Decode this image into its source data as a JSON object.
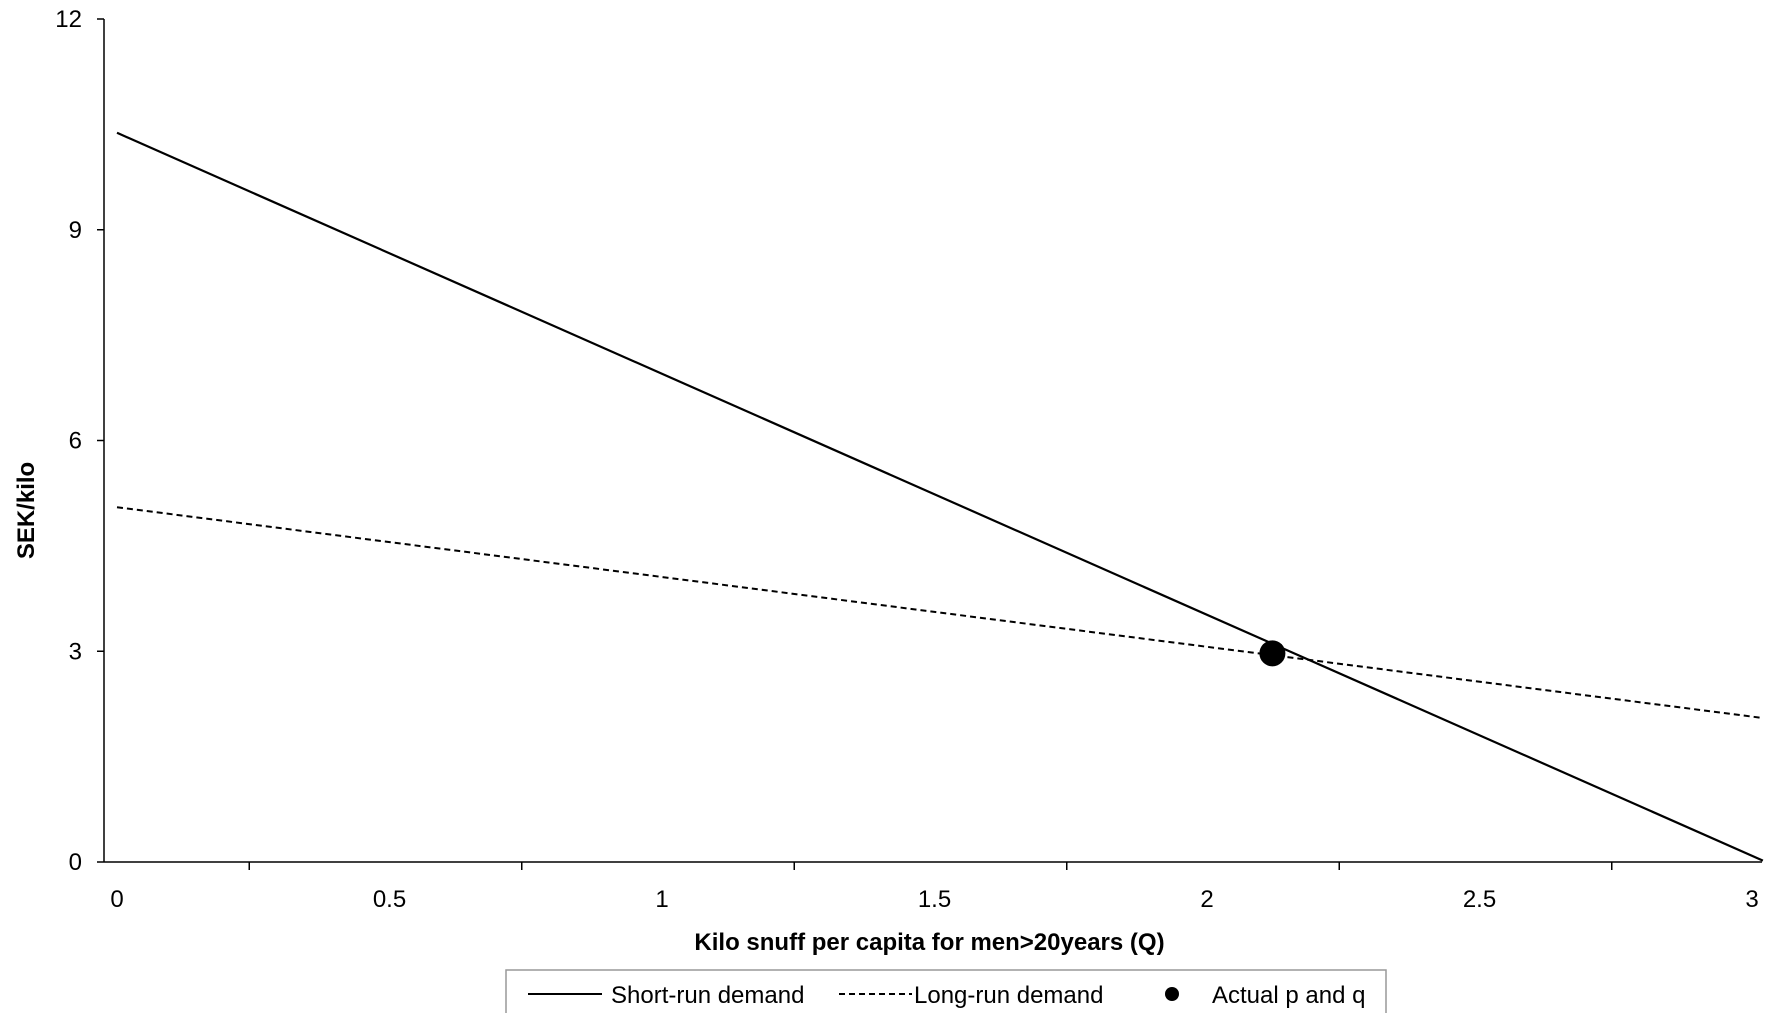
{
  "chart_data": {
    "type": "line",
    "title": "",
    "xlabel": "Kilo snuff per capita for men>20years (Q)",
    "ylabel": "SEK/kilo",
    "xlim": [
      0,
      3
    ],
    "ylim": [
      0,
      12
    ],
    "xticks": [
      {
        "value": 0,
        "label": "0"
      },
      {
        "value": 0.5,
        "label": "0.5"
      },
      {
        "value": 1,
        "label": "1"
      },
      {
        "value": 1.5,
        "label": "1.5"
      },
      {
        "value": 2,
        "label": "2"
      },
      {
        "value": 2.5,
        "label": "2.5"
      },
      {
        "value": 3,
        "label": "3"
      }
    ],
    "yticks": [
      {
        "value": 0,
        "label": "0"
      },
      {
        "value": 3,
        "label": "3"
      },
      {
        "value": 6,
        "label": "6"
      },
      {
        "value": 9,
        "label": "9"
      },
      {
        "value": 12,
        "label": "12"
      }
    ],
    "grid": false,
    "legend_position": "bottom",
    "series": [
      {
        "name": "Short-run demand",
        "style": "solid",
        "color": "#000000",
        "x": [
          0,
          3.02
        ],
        "y": [
          10.38,
          0.02
        ]
      },
      {
        "name": "Long-run demand",
        "style": "dashed",
        "color": "#000000",
        "x": [
          0,
          3.02
        ],
        "y": [
          5.05,
          2.05
        ]
      },
      {
        "name": "Actual p and q",
        "style": "marker",
        "color": "#000000",
        "x": [
          2.12
        ],
        "y": [
          2.97
        ]
      }
    ]
  }
}
